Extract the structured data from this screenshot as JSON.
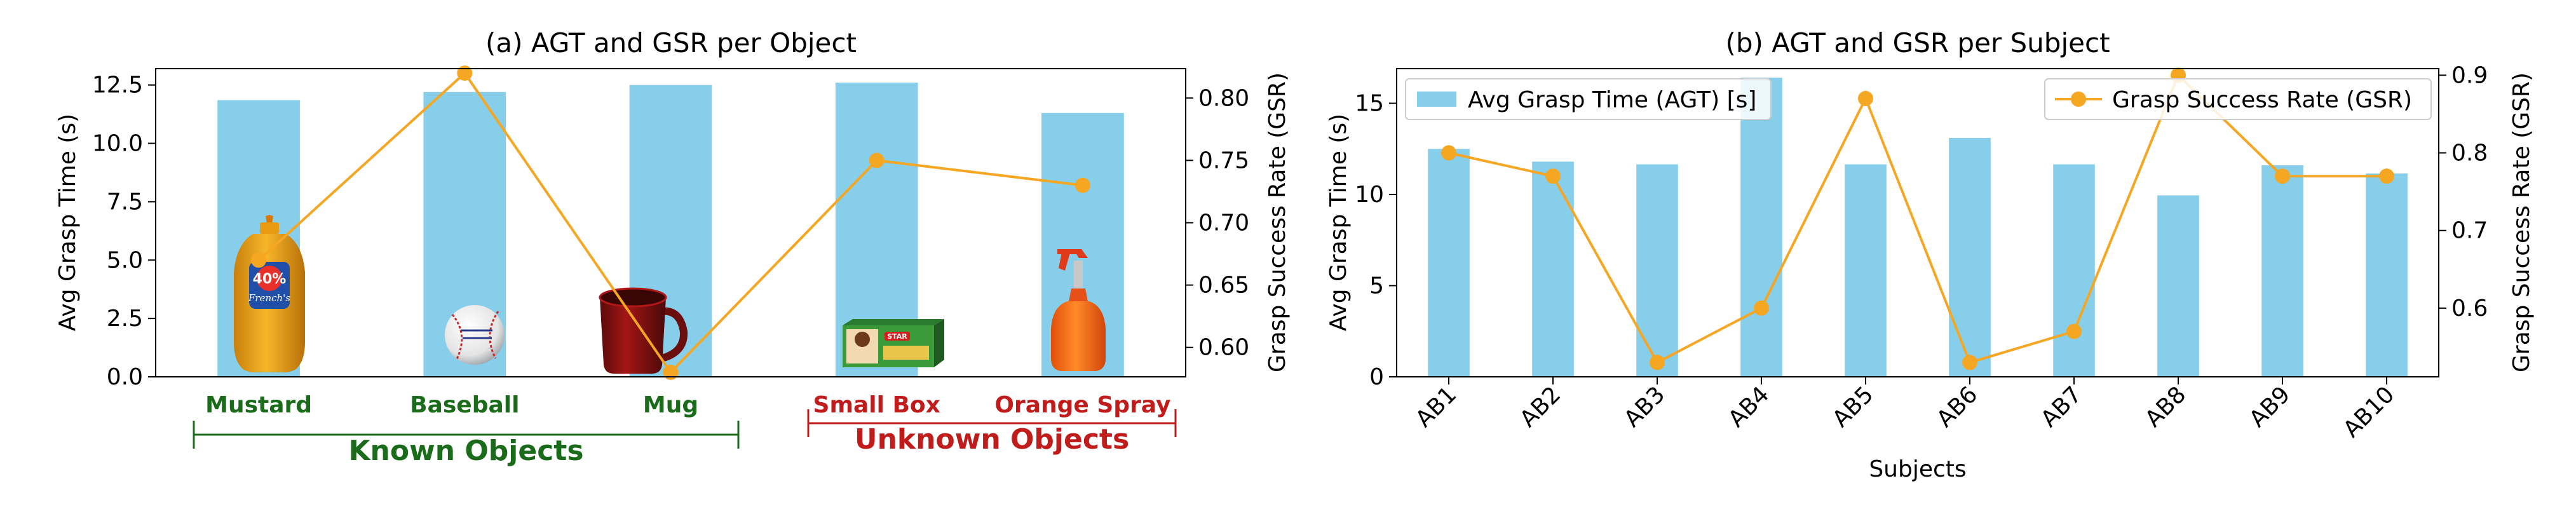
{
  "chart_data": [
    {
      "type": "bar",
      "title": "(a) AGT and GSR per Object",
      "categories": [
        "Mustard",
        "Baseball",
        "Mug",
        "Small Box",
        "Orange Spray"
      ],
      "category_colors": [
        "#1a6b1a",
        "#1a6b1a",
        "#1a6b1a",
        "#c01c1c",
        "#c01c1c"
      ],
      "series": [
        {
          "values": [
            11.85,
            12.2,
            12.5,
            12.6,
            11.3
          ],
          "axis": "left",
          "color": "#87ceeb",
          "kind": "bar"
        },
        {
          "values": [
            0.67,
            0.82,
            0.58,
            0.75,
            0.73
          ],
          "axis": "right",
          "color": "#f5a623",
          "kind": "line"
        }
      ],
      "ylabel": "Avg Grasp Time (s)",
      "y2label": "Grasp Success Rate (GSR)",
      "ylim": [
        0,
        13.2
      ],
      "y2lim": [
        0.5764,
        0.8236
      ],
      "yticks": [
        "0.0",
        "2.5",
        "5.0",
        "7.5",
        "10.0",
        "12.5"
      ],
      "y2ticks": [
        "0.60",
        "0.65",
        "0.70",
        "0.75",
        "0.80"
      ],
      "groups": [
        {
          "label": "Known Objects",
          "color": "#1a6b1a",
          "from": 0,
          "to": 2
        },
        {
          "label": "Unknown Objects",
          "color": "#c01c1c",
          "from": 3,
          "to": 4
        }
      ],
      "icons": [
        "mustard-bottle-icon",
        "baseball-icon",
        "mug-icon",
        "small-box-icon",
        "orange-spray-icon"
      ]
    },
    {
      "type": "bar",
      "title": "(b) AGT and GSR per Subject",
      "categories": [
        "AB1",
        "AB2",
        "AB3",
        "AB4",
        "AB5",
        "AB6",
        "AB7",
        "AB8",
        "AB9",
        "AB10"
      ],
      "series": [
        {
          "name": "Avg Grasp Time (AGT) [s]",
          "values": [
            12.5,
            11.8,
            11.65,
            16.4,
            11.65,
            13.1,
            11.65,
            9.95,
            11.6,
            11.15
          ],
          "axis": "left",
          "color": "#87ceeb",
          "kind": "bar"
        },
        {
          "name": "Grasp Success Rate (GSR)",
          "values": [
            0.8,
            0.77,
            0.53,
            0.6,
            0.87,
            0.53,
            0.57,
            0.9,
            0.77,
            0.77
          ],
          "axis": "right",
          "color": "#f5a623",
          "kind": "line"
        }
      ],
      "xlabel": "Subjects",
      "ylabel": "Avg Grasp Time (s)",
      "y2label": "Grasp Success Rate (GSR)",
      "ylim": [
        0,
        16.9
      ],
      "y2lim": [
        0.5115,
        0.9085
      ],
      "yticks": [
        "0",
        "5",
        "10",
        "15"
      ],
      "y2ticks": [
        "0.6",
        "0.7",
        "0.8",
        "0.9"
      ],
      "legend": [
        "top-left",
        "top-right"
      ]
    }
  ]
}
